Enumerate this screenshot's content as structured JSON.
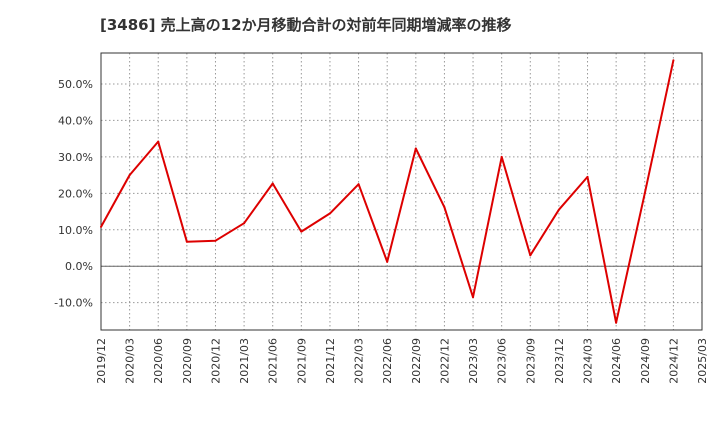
{
  "chart_data": {
    "type": "line",
    "title": "[3486]  売上高の12か月移動合計の対前年同期増減率の推移",
    "xlabel": "",
    "ylabel": "",
    "categories": [
      "2019/12",
      "2020/03",
      "2020/06",
      "2020/09",
      "2020/12",
      "2021/03",
      "2021/06",
      "2021/09",
      "2021/12",
      "2022/03",
      "2022/06",
      "2022/09",
      "2022/12",
      "2023/03",
      "2023/06",
      "2023/09",
      "2023/12",
      "2024/03",
      "2024/06",
      "2024/09",
      "2024/12",
      "2025/03"
    ],
    "series": [
      {
        "name": "対前年同期増減率",
        "color": "#dd0000",
        "values": [
          10.8,
          25.0,
          34.2,
          6.7,
          7.0,
          11.8,
          22.7,
          9.5,
          14.5,
          22.5,
          1.2,
          32.3,
          16.2,
          -8.5,
          30.0,
          3.0,
          15.5,
          24.5,
          -15.5,
          20.0,
          56.5,
          null
        ]
      }
    ],
    "ylim": [
      -17.5,
      58.5
    ],
    "yticks": [
      -10,
      0,
      10,
      20,
      30,
      40,
      50
    ],
    "ytick_labels": [
      "-10.0%",
      "0.0%",
      "10.0%",
      "20.0%",
      "30.0%",
      "40.0%",
      "50.0%"
    ],
    "grid": true,
    "legend": "none"
  }
}
